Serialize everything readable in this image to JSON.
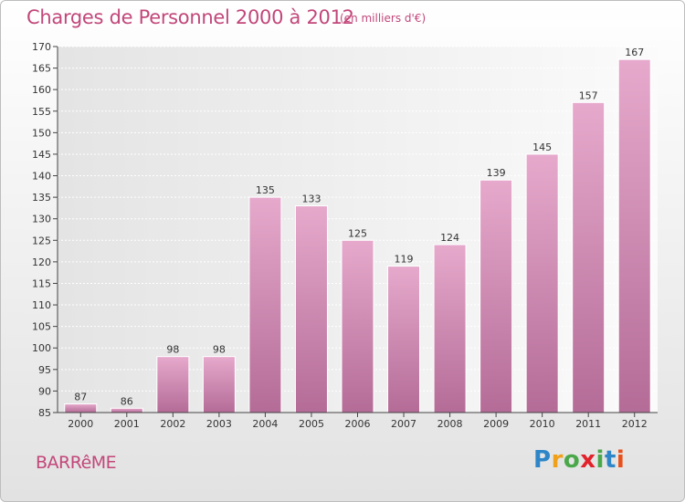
{
  "header": {
    "title": "Charges de Personnel 2000 à 2012",
    "unit": "(en milliers d'€)"
  },
  "footer": {
    "commune": "BARRêME",
    "logo": {
      "letters": [
        "P",
        "r",
        "o",
        "x",
        "i",
        "t",
        "i"
      ],
      "colors": [
        "#2e86c8",
        "#f0a11b",
        "#4aa84a",
        "#e2222a",
        "#4aa84a",
        "#2e86c8",
        "#e8501b"
      ]
    }
  },
  "chart_data": {
    "type": "bar",
    "title": "Charges de Personnel 2000 à 2012",
    "subtitle": "(en milliers d'€)",
    "categories": [
      "2000",
      "2001",
      "2002",
      "2003",
      "2004",
      "2005",
      "2006",
      "2007",
      "2008",
      "2009",
      "2010",
      "2011",
      "2012"
    ],
    "values": [
      87,
      86,
      98,
      98,
      135,
      133,
      125,
      119,
      124,
      139,
      145,
      157,
      167
    ],
    "data_labels": [
      "87",
      "86",
      "98",
      "98",
      "135",
      "133",
      "125",
      "119",
      "124",
      "139",
      "145",
      "157",
      "167"
    ],
    "ylim": [
      85,
      170
    ],
    "yticks": [
      85,
      90,
      95,
      100,
      105,
      110,
      115,
      120,
      125,
      130,
      135,
      140,
      145,
      150,
      155,
      160,
      165,
      170
    ],
    "ytick_labels": [
      "85",
      "90",
      "95",
      "100",
      "105",
      "110",
      "115",
      "120",
      "125",
      "130",
      "135",
      "140",
      "145",
      "150",
      "155",
      "160",
      "165",
      "170"
    ],
    "grid": true,
    "bar_color": "#d889b4",
    "xlabel": "",
    "ylabel": ""
  }
}
